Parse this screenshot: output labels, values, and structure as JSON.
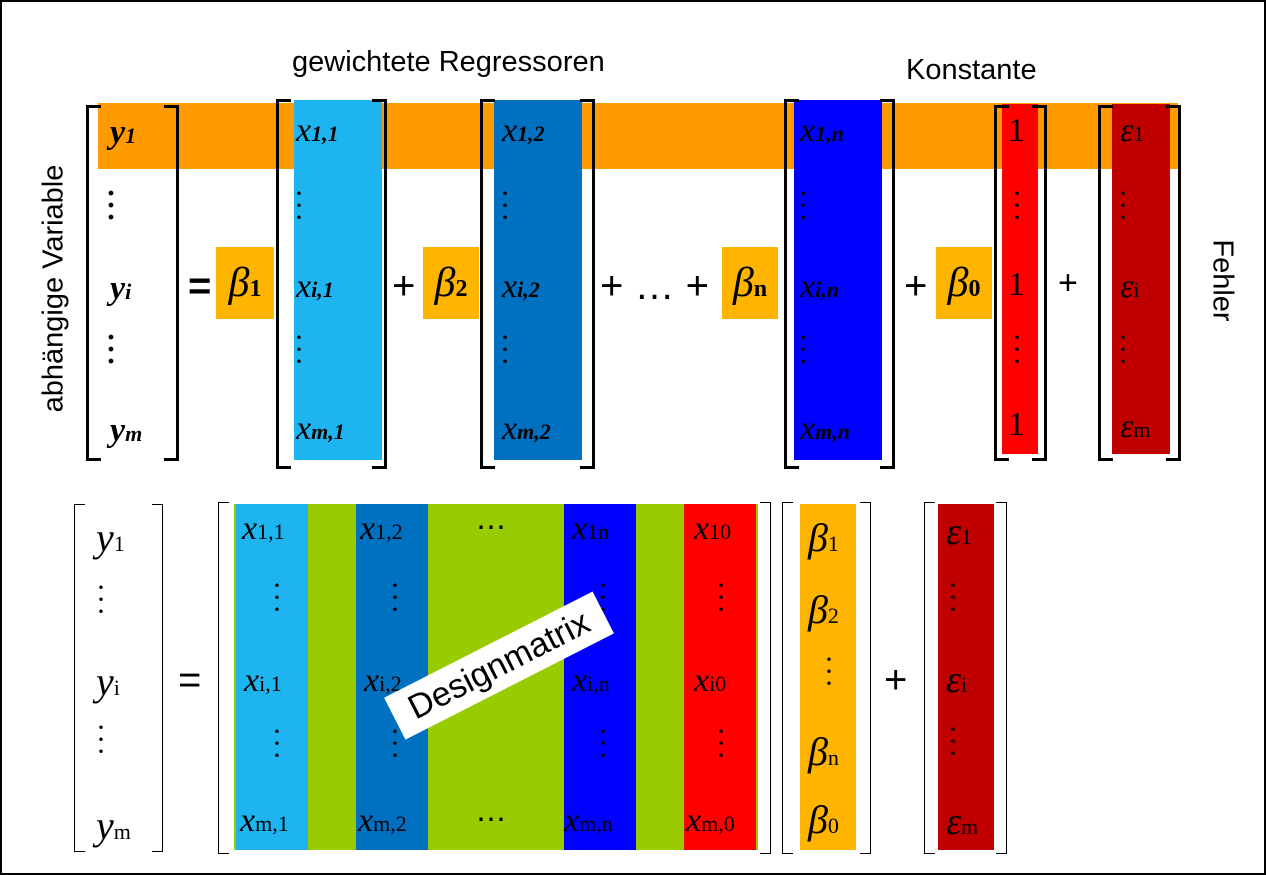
{
  "labels": {
    "weighted_regressors": "gewichtete Regressoren",
    "constant": "Konstante",
    "dependent_variable": "abhängige Variable",
    "error": "Fehler",
    "design_matrix": "Designmatrix"
  },
  "top": {
    "y": [
      "y",
      "1",
      "y",
      "i",
      "y",
      "m"
    ],
    "x1": [
      "x",
      "1,1",
      "x",
      "i,1",
      "x",
      "m,1"
    ],
    "x2": [
      "x",
      "1,2",
      "x",
      "i,2",
      "x",
      "m,2"
    ],
    "xn": [
      "x",
      "1,n",
      "x",
      "i,n",
      "x",
      "m,n"
    ],
    "one": [
      "1",
      "1",
      "1"
    ],
    "eps": [
      "ε",
      "1",
      "ε",
      "i",
      "ε",
      "m"
    ],
    "betas": [
      "β",
      "1",
      "β",
      "2",
      "β",
      "n",
      "β",
      "0"
    ],
    "ops": [
      "=",
      "+",
      "+ … +",
      "+",
      "+"
    ]
  },
  "bottom": {
    "y": [
      "y",
      "1",
      "y",
      "i",
      "y",
      "m"
    ],
    "x1": [
      "x",
      "1,1",
      "x",
      "i,1",
      "x",
      "m,1"
    ],
    "x2": [
      "x",
      "1,2",
      "x",
      "i,2",
      "x",
      "m,2"
    ],
    "xn": [
      "x",
      "1n",
      "x",
      "i,n",
      "x",
      "m,n"
    ],
    "x0": [
      "x",
      "10",
      "x",
      "i0",
      "x",
      "m,0"
    ],
    "cdots": [
      "⋯",
      "⋯"
    ],
    "betas": [
      "β",
      "1",
      "β",
      "2",
      "β",
      "n",
      "β",
      "0"
    ],
    "eps": [
      "ε",
      "1",
      "ε",
      "i",
      "ε",
      "m"
    ],
    "ops": [
      "=",
      "+"
    ]
  },
  "colors": {
    "orange": "#ff9a00",
    "beta": "#ffb500",
    "light_blue": "#1eb4f0",
    "mid_blue": "#0070c0",
    "blue": "#0000ff",
    "red": "#ff0000",
    "dark_red": "#c00000",
    "green": "#99cc00"
  }
}
